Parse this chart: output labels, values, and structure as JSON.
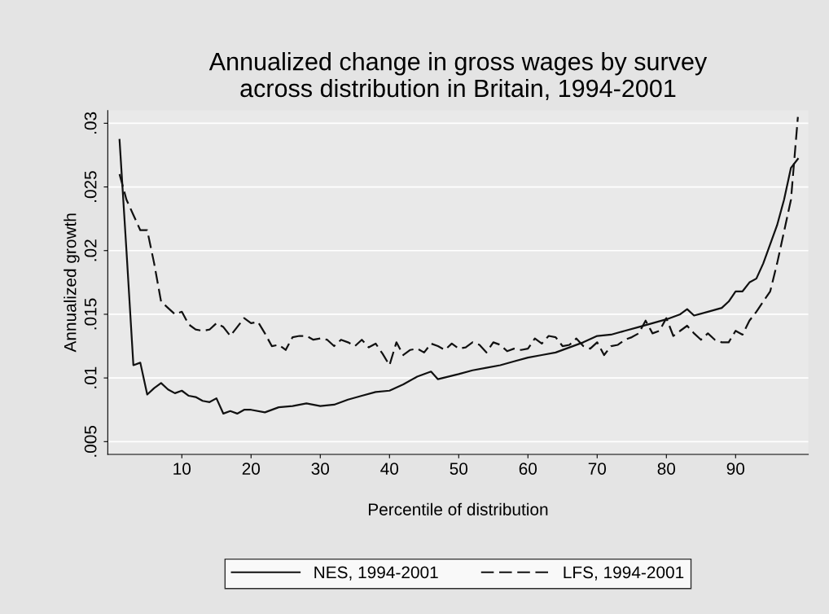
{
  "chart_data": {
    "type": "line",
    "title": "Annualized change in gross wages by survey\nacross distribution in Britain, 1994-2001",
    "xlabel": "Percentile of distribution",
    "ylabel": "Annualized growth",
    "xlim": [
      -0.7,
      100.5
    ],
    "ylim": [
      0.004,
      0.031
    ],
    "xticks": [
      10,
      20,
      30,
      40,
      50,
      60,
      70,
      80,
      90
    ],
    "yticks": [
      {
        "value": 0.005,
        "label": ".005"
      },
      {
        "value": 0.01,
        "label": ".01"
      },
      {
        "value": 0.015,
        "label": ".015"
      },
      {
        "value": 0.02,
        "label": ".02"
      },
      {
        "value": 0.025,
        "label": ".025"
      },
      {
        "value": 0.03,
        "label": ".03"
      }
    ],
    "grid": "y",
    "legend": "bottom",
    "marker": "none",
    "series": [
      {
        "name": "NES, 1994-2001",
        "color": "#111111",
        "line_style": "solid",
        "x": [
          1,
          2,
          3,
          4,
          5,
          6,
          7,
          8,
          9,
          10,
          11,
          12,
          13,
          14,
          15,
          16,
          17,
          18,
          19,
          20,
          22,
          24,
          26,
          28,
          30,
          32,
          34,
          36,
          38,
          40,
          42,
          44,
          46,
          47,
          50,
          52,
          54,
          56,
          58,
          60,
          62,
          64,
          66,
          68,
          70,
          72,
          74,
          76,
          78,
          80,
          82,
          83,
          84,
          86,
          88,
          89,
          90,
          91,
          92,
          93,
          94,
          95,
          96,
          97,
          98,
          99
        ],
        "values": [
          0.0287,
          0.02,
          0.011,
          0.0112,
          0.0087,
          0.0092,
          0.0096,
          0.0091,
          0.0088,
          0.009,
          0.0086,
          0.0085,
          0.0082,
          0.0081,
          0.0084,
          0.0072,
          0.0074,
          0.0072,
          0.0075,
          0.0075,
          0.0073,
          0.0077,
          0.0078,
          0.008,
          0.0078,
          0.0079,
          0.0083,
          0.0086,
          0.0089,
          0.009,
          0.0095,
          0.0101,
          0.0105,
          0.0099,
          0.0103,
          0.0106,
          0.0108,
          0.011,
          0.0113,
          0.0116,
          0.0118,
          0.012,
          0.0124,
          0.0128,
          0.0133,
          0.0134,
          0.0137,
          0.014,
          0.0143,
          0.0146,
          0.015,
          0.0154,
          0.0149,
          0.0152,
          0.0155,
          0.016,
          0.0168,
          0.0168,
          0.0175,
          0.0178,
          0.019,
          0.0205,
          0.022,
          0.024,
          0.0265,
          0.0272
        ]
      },
      {
        "name": "LFS, 1994-2001",
        "color": "#111111",
        "line_style": "dashed",
        "x": [
          1,
          2,
          3,
          4,
          5,
          6,
          7,
          8,
          9,
          10,
          11,
          12,
          13,
          14,
          15,
          16,
          17,
          18,
          19,
          20,
          21,
          22,
          23,
          24,
          25,
          26,
          27,
          28,
          29,
          30,
          31,
          32,
          33,
          34,
          35,
          36,
          37,
          38,
          39,
          40,
          41,
          42,
          43,
          44,
          45,
          46,
          47,
          48,
          49,
          50,
          51,
          52,
          53,
          54,
          55,
          56,
          57,
          58,
          59,
          60,
          61,
          62,
          63,
          64,
          65,
          66,
          67,
          68,
          69,
          70,
          71,
          72,
          73,
          74,
          75,
          76,
          77,
          78,
          79,
          80,
          81,
          82,
          83,
          84,
          85,
          86,
          87,
          88,
          89,
          90,
          91,
          92,
          93,
          94,
          95,
          96,
          97,
          98,
          99
        ],
        "values": [
          0.026,
          0.024,
          0.0228,
          0.0216,
          0.0216,
          0.019,
          0.016,
          0.0155,
          0.015,
          0.0152,
          0.0142,
          0.0138,
          0.0137,
          0.0138,
          0.0143,
          0.014,
          0.0133,
          0.014,
          0.0147,
          0.0143,
          0.0144,
          0.0135,
          0.0125,
          0.0126,
          0.0122,
          0.0132,
          0.0133,
          0.0133,
          0.013,
          0.0131,
          0.013,
          0.0125,
          0.013,
          0.0128,
          0.0125,
          0.013,
          0.0124,
          0.0127,
          0.0119,
          0.011,
          0.0128,
          0.0118,
          0.0122,
          0.0123,
          0.012,
          0.0127,
          0.0125,
          0.0122,
          0.0127,
          0.0123,
          0.0124,
          0.0128,
          0.0126,
          0.012,
          0.0128,
          0.0126,
          0.0121,
          0.0123,
          0.0122,
          0.0123,
          0.0131,
          0.0127,
          0.0133,
          0.0132,
          0.0125,
          0.0126,
          0.0131,
          0.0125,
          0.0123,
          0.0128,
          0.0118,
          0.0125,
          0.0126,
          0.013,
          0.0132,
          0.0135,
          0.0145,
          0.0135,
          0.0137,
          0.0147,
          0.0133,
          0.0137,
          0.0141,
          0.0135,
          0.013,
          0.0135,
          0.013,
          0.0128,
          0.0128,
          0.0137,
          0.0134,
          0.0145,
          0.0152,
          0.016,
          0.0168,
          0.019,
          0.0215,
          0.024,
          0.0305
        ]
      }
    ]
  }
}
